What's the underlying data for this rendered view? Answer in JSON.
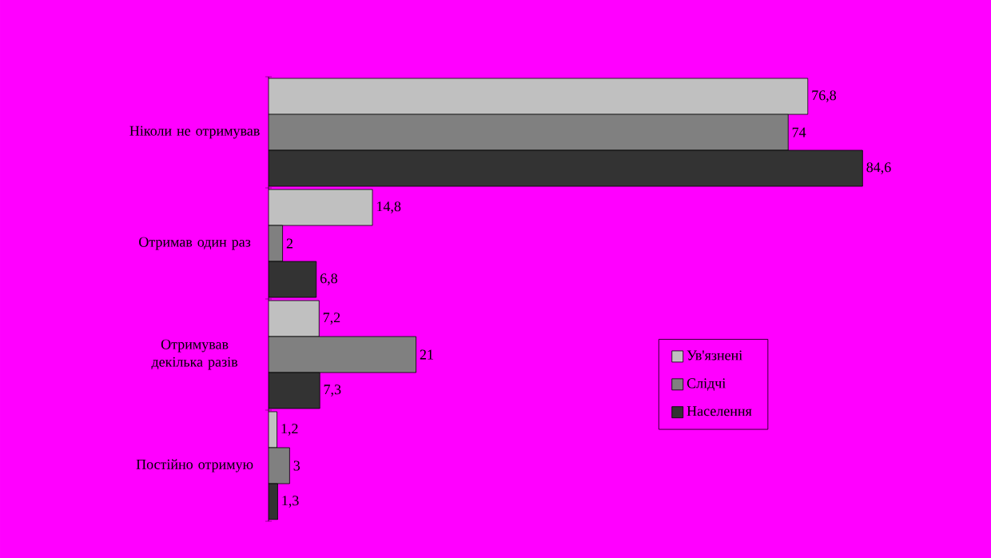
{
  "chart_data": {
    "type": "bar",
    "orientation": "horizontal",
    "categories": [
      "Ніколи не отримував",
      "Отримав один раз",
      "Отримував декілька разів",
      "Постійно отримую"
    ],
    "series": [
      {
        "name": "Ув'язнені",
        "color": "#c0c0c0",
        "values": [
          76.8,
          14.8,
          7.2,
          1.2
        ],
        "value_labels": [
          "76,8",
          "14,8",
          "7,2",
          "1,2"
        ]
      },
      {
        "name": "Слідчі",
        "color": "#808080",
        "values": [
          74,
          2,
          21,
          3
        ],
        "value_labels": [
          "74",
          "2",
          "21",
          "3"
        ]
      },
      {
        "name": "Населення",
        "color": "#333333",
        "values": [
          84.6,
          6.8,
          7.3,
          1.3
        ],
        "value_labels": [
          "84,6",
          "6,8",
          "7,3",
          "1,3"
        ]
      }
    ],
    "legend": "right",
    "tick_labels": "y",
    "grid": false
  }
}
